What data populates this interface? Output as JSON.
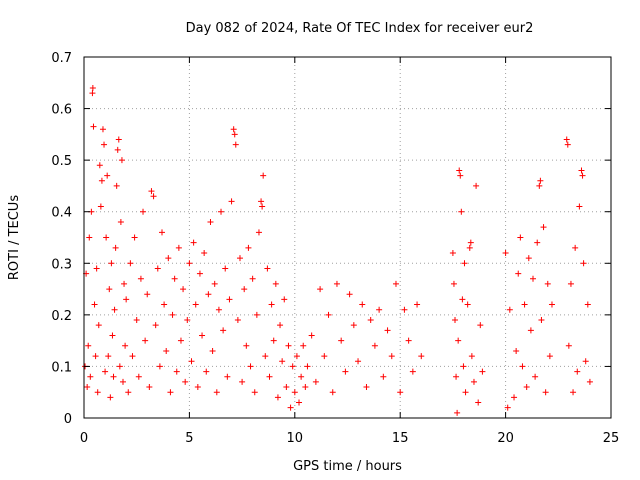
{
  "chart_data": {
    "type": "scatter",
    "title": "Day 082 of 2024, Rate Of TEC Index for receiver eur2",
    "xlabel": "GPS time / hours",
    "ylabel": "ROTI / TECUs",
    "xlim": [
      0,
      25
    ],
    "ylim": [
      0,
      0.7
    ],
    "xticks": [
      0,
      5,
      10,
      15,
      20,
      25
    ],
    "xtick_labels": [
      "0",
      "5",
      "10",
      "15",
      "20",
      "25"
    ],
    "yticks": [
      0,
      0.1,
      0.2,
      0.3,
      0.4,
      0.5,
      0.6,
      0.7
    ],
    "ytick_labels": [
      "0",
      "0.1",
      "0.2",
      "0.3",
      "0.4",
      "0.5",
      "0.6",
      "0.7"
    ],
    "grid": true,
    "marker": "plus",
    "color": "#ff0000",
    "series": [
      {
        "points": [
          [
            0.05,
            0.1
          ],
          [
            0.1,
            0.28
          ],
          [
            0.15,
            0.06
          ],
          [
            0.2,
            0.14
          ],
          [
            0.25,
            0.35
          ],
          [
            0.3,
            0.08
          ],
          [
            0.35,
            0.4
          ],
          [
            0.4,
            0.63
          ],
          [
            0.42,
            0.64
          ],
          [
            0.45,
            0.565
          ],
          [
            0.5,
            0.22
          ],
          [
            0.55,
            0.12
          ],
          [
            0.6,
            0.29
          ],
          [
            0.65,
            0.05
          ],
          [
            0.7,
            0.18
          ],
          [
            0.75,
            0.49
          ],
          [
            0.8,
            0.41
          ],
          [
            0.85,
            0.46
          ],
          [
            0.9,
            0.56
          ],
          [
            0.95,
            0.53
          ],
          [
            1.0,
            0.09
          ],
          [
            1.05,
            0.35
          ],
          [
            1.1,
            0.47
          ],
          [
            1.15,
            0.12
          ],
          [
            1.2,
            0.25
          ],
          [
            1.25,
            0.04
          ],
          [
            1.3,
            0.3
          ],
          [
            1.35,
            0.16
          ],
          [
            1.4,
            0.08
          ],
          [
            1.45,
            0.21
          ],
          [
            1.5,
            0.33
          ],
          [
            1.55,
            0.45
          ],
          [
            1.6,
            0.52
          ],
          [
            1.65,
            0.54
          ],
          [
            1.7,
            0.1
          ],
          [
            1.75,
            0.38
          ],
          [
            1.8,
            0.5
          ],
          [
            1.85,
            0.07
          ],
          [
            1.9,
            0.26
          ],
          [
            1.95,
            0.14
          ],
          [
            2.0,
            0.23
          ],
          [
            2.1,
            0.05
          ],
          [
            2.2,
            0.3
          ],
          [
            2.3,
            0.12
          ],
          [
            2.4,
            0.35
          ],
          [
            2.5,
            0.19
          ],
          [
            2.6,
            0.08
          ],
          [
            2.7,
            0.27
          ],
          [
            2.8,
            0.4
          ],
          [
            2.9,
            0.15
          ],
          [
            3.0,
            0.24
          ],
          [
            3.1,
            0.06
          ],
          [
            3.2,
            0.44
          ],
          [
            3.3,
            0.43
          ],
          [
            3.4,
            0.18
          ],
          [
            3.5,
            0.29
          ],
          [
            3.6,
            0.1
          ],
          [
            3.7,
            0.36
          ],
          [
            3.8,
            0.22
          ],
          [
            3.9,
            0.13
          ],
          [
            4.0,
            0.31
          ],
          [
            4.1,
            0.05
          ],
          [
            4.2,
            0.2
          ],
          [
            4.3,
            0.27
          ],
          [
            4.4,
            0.09
          ],
          [
            4.5,
            0.33
          ],
          [
            4.6,
            0.15
          ],
          [
            4.7,
            0.25
          ],
          [
            4.8,
            0.07
          ],
          [
            4.9,
            0.19
          ],
          [
            5.0,
            0.3
          ],
          [
            5.1,
            0.11
          ],
          [
            5.2,
            0.34
          ],
          [
            5.3,
            0.22
          ],
          [
            5.4,
            0.06
          ],
          [
            5.5,
            0.28
          ],
          [
            5.6,
            0.16
          ],
          [
            5.7,
            0.32
          ],
          [
            5.8,
            0.09
          ],
          [
            5.9,
            0.24
          ],
          [
            6.0,
            0.38
          ],
          [
            6.1,
            0.13
          ],
          [
            6.2,
            0.26
          ],
          [
            6.3,
            0.05
          ],
          [
            6.4,
            0.21
          ],
          [
            6.5,
            0.4
          ],
          [
            6.6,
            0.17
          ],
          [
            6.7,
            0.29
          ],
          [
            6.8,
            0.08
          ],
          [
            6.9,
            0.23
          ],
          [
            7.0,
            0.42
          ],
          [
            7.1,
            0.56
          ],
          [
            7.15,
            0.55
          ],
          [
            7.2,
            0.53
          ],
          [
            7.3,
            0.19
          ],
          [
            7.4,
            0.31
          ],
          [
            7.5,
            0.07
          ],
          [
            7.6,
            0.25
          ],
          [
            7.7,
            0.14
          ],
          [
            7.8,
            0.33
          ],
          [
            7.9,
            0.1
          ],
          [
            8.0,
            0.27
          ],
          [
            8.1,
            0.05
          ],
          [
            8.2,
            0.2
          ],
          [
            8.3,
            0.36
          ],
          [
            8.4,
            0.42
          ],
          [
            8.45,
            0.41
          ],
          [
            8.5,
            0.47
          ],
          [
            8.6,
            0.12
          ],
          [
            8.7,
            0.29
          ],
          [
            8.8,
            0.08
          ],
          [
            8.9,
            0.22
          ],
          [
            9.0,
            0.15
          ],
          [
            9.1,
            0.26
          ],
          [
            9.2,
            0.04
          ],
          [
            9.3,
            0.18
          ],
          [
            9.4,
            0.11
          ],
          [
            9.5,
            0.23
          ],
          [
            9.6,
            0.06
          ],
          [
            9.7,
            0.14
          ],
          [
            9.8,
            0.02
          ],
          [
            9.9,
            0.1
          ],
          [
            10.0,
            0.05
          ],
          [
            10.1,
            0.12
          ],
          [
            10.2,
            0.03
          ],
          [
            10.3,
            0.08
          ],
          [
            10.4,
            0.14
          ],
          [
            10.5,
            0.06
          ],
          [
            10.6,
            0.1
          ],
          [
            10.8,
            0.16
          ],
          [
            11.0,
            0.07
          ],
          [
            11.2,
            0.25
          ],
          [
            11.4,
            0.12
          ],
          [
            11.6,
            0.2
          ],
          [
            11.8,
            0.05
          ],
          [
            12.0,
            0.26
          ],
          [
            12.2,
            0.15
          ],
          [
            12.4,
            0.09
          ],
          [
            12.6,
            0.24
          ],
          [
            12.8,
            0.18
          ],
          [
            13.0,
            0.11
          ],
          [
            13.2,
            0.22
          ],
          [
            13.4,
            0.06
          ],
          [
            13.6,
            0.19
          ],
          [
            13.8,
            0.14
          ],
          [
            14.0,
            0.21
          ],
          [
            14.2,
            0.08
          ],
          [
            14.4,
            0.17
          ],
          [
            14.6,
            0.12
          ],
          [
            14.8,
            0.26
          ],
          [
            15.0,
            0.05
          ],
          [
            15.2,
            0.21
          ],
          [
            15.4,
            0.15
          ],
          [
            15.6,
            0.09
          ],
          [
            15.8,
            0.22
          ],
          [
            16.0,
            0.12
          ],
          [
            17.5,
            0.32
          ],
          [
            17.55,
            0.26
          ],
          [
            17.6,
            0.19
          ],
          [
            17.65,
            0.08
          ],
          [
            17.7,
            0.01
          ],
          [
            17.75,
            0.15
          ],
          [
            17.8,
            0.48
          ],
          [
            17.85,
            0.47
          ],
          [
            17.9,
            0.4
          ],
          [
            17.95,
            0.23
          ],
          [
            18.0,
            0.1
          ],
          [
            18.05,
            0.3
          ],
          [
            18.1,
            0.05
          ],
          [
            18.2,
            0.22
          ],
          [
            18.3,
            0.33
          ],
          [
            18.35,
            0.34
          ],
          [
            18.4,
            0.12
          ],
          [
            18.5,
            0.07
          ],
          [
            18.6,
            0.45
          ],
          [
            18.7,
            0.03
          ],
          [
            18.8,
            0.18
          ],
          [
            18.9,
            0.09
          ],
          [
            20.0,
            0.32
          ],
          [
            20.1,
            0.02
          ],
          [
            20.2,
            0.21
          ],
          [
            20.4,
            0.04
          ],
          [
            20.5,
            0.13
          ],
          [
            20.6,
            0.28
          ],
          [
            20.7,
            0.35
          ],
          [
            20.8,
            0.1
          ],
          [
            20.9,
            0.22
          ],
          [
            21.0,
            0.06
          ],
          [
            21.1,
            0.31
          ],
          [
            21.2,
            0.17
          ],
          [
            21.3,
            0.27
          ],
          [
            21.4,
            0.08
          ],
          [
            21.5,
            0.34
          ],
          [
            21.6,
            0.45
          ],
          [
            21.65,
            0.46
          ],
          [
            21.7,
            0.19
          ],
          [
            21.8,
            0.37
          ],
          [
            21.9,
            0.05
          ],
          [
            22.0,
            0.26
          ],
          [
            22.1,
            0.12
          ],
          [
            22.2,
            0.22
          ],
          [
            22.9,
            0.54
          ],
          [
            22.95,
            0.53
          ],
          [
            23.0,
            0.14
          ],
          [
            23.1,
            0.26
          ],
          [
            23.2,
            0.05
          ],
          [
            23.3,
            0.33
          ],
          [
            23.4,
            0.09
          ],
          [
            23.5,
            0.41
          ],
          [
            23.6,
            0.48
          ],
          [
            23.65,
            0.47
          ],
          [
            23.7,
            0.3
          ],
          [
            23.8,
            0.11
          ],
          [
            23.9,
            0.22
          ],
          [
            24.0,
            0.07
          ]
        ]
      }
    ]
  }
}
